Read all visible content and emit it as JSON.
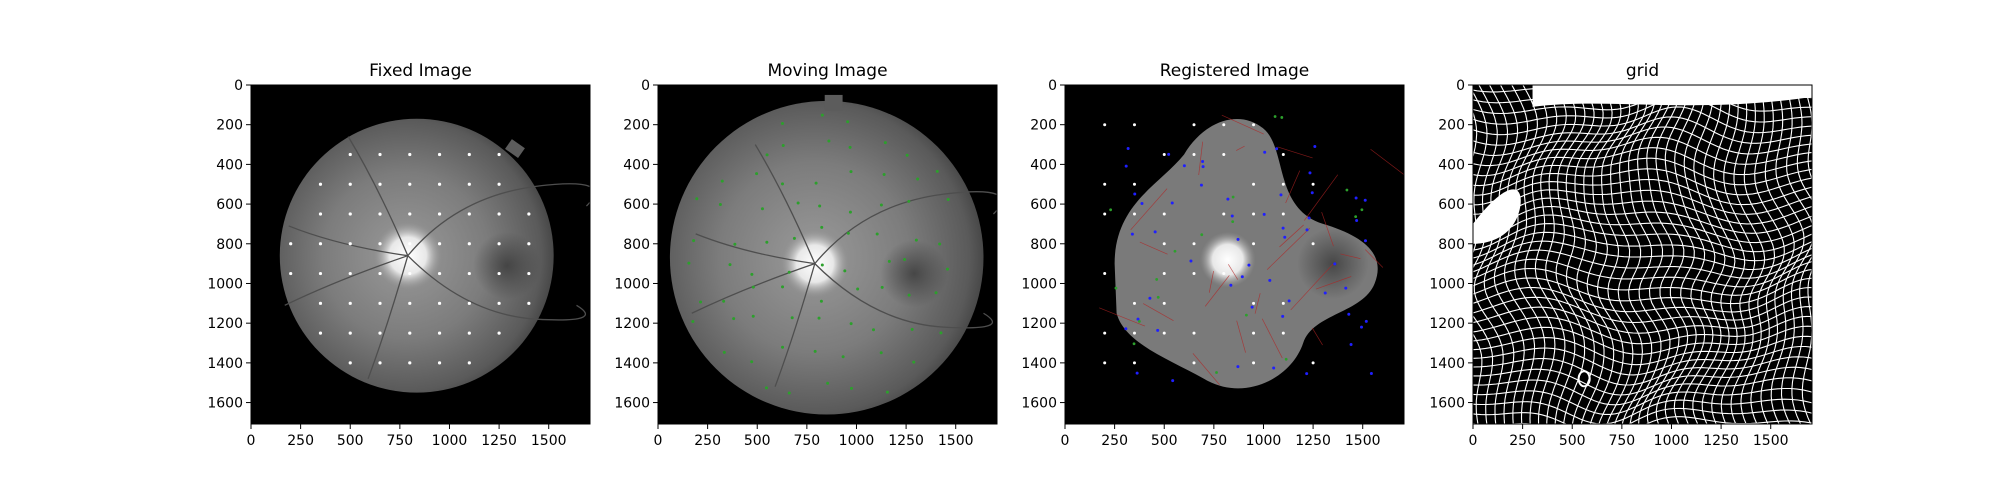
{
  "panels": [
    {
      "title": "Fixed Image",
      "kind": "fundus",
      "points": "white",
      "x_ticks": [
        "0",
        "250",
        "500",
        "750",
        "1000",
        "1250",
        "1500"
      ],
      "y_ticks": [
        "0",
        "200",
        "400",
        "600",
        "800",
        "1000",
        "1200",
        "1400",
        "1600"
      ]
    },
    {
      "title": "Moving Image",
      "kind": "fundus",
      "points": "green",
      "x_ticks": [
        "0",
        "250",
        "500",
        "750",
        "1000",
        "1250",
        "1500"
      ],
      "y_ticks": [
        "0",
        "200",
        "400",
        "600",
        "800",
        "1000",
        "1200",
        "1400",
        "1600"
      ]
    },
    {
      "title": "Registered Image",
      "kind": "warped",
      "points": "mixed",
      "x_ticks": [
        "0",
        "250",
        "500",
        "750",
        "1000",
        "1250",
        "1500"
      ],
      "y_ticks": [
        "0",
        "200",
        "400",
        "600",
        "800",
        "1000",
        "1200",
        "1400",
        "1600"
      ]
    },
    {
      "title": "grid",
      "kind": "grid",
      "points": "none",
      "x_ticks": [
        "0",
        "250",
        "500",
        "750",
        "1000",
        "1250",
        "1500"
      ],
      "y_ticks": [
        "0",
        "200",
        "400",
        "600",
        "800",
        "1000",
        "1200",
        "1400",
        "1600"
      ]
    }
  ],
  "image_range": {
    "x": [
      0,
      1708
    ],
    "y": [
      0,
      1708
    ]
  },
  "colors": {
    "image_bg": "#000000",
    "fixed_point": "#ffffff",
    "moving_point": "#2ca02c",
    "registered_point": "#1f1fff",
    "match_line": "#b22222",
    "grid_line": "#ffffff"
  }
}
